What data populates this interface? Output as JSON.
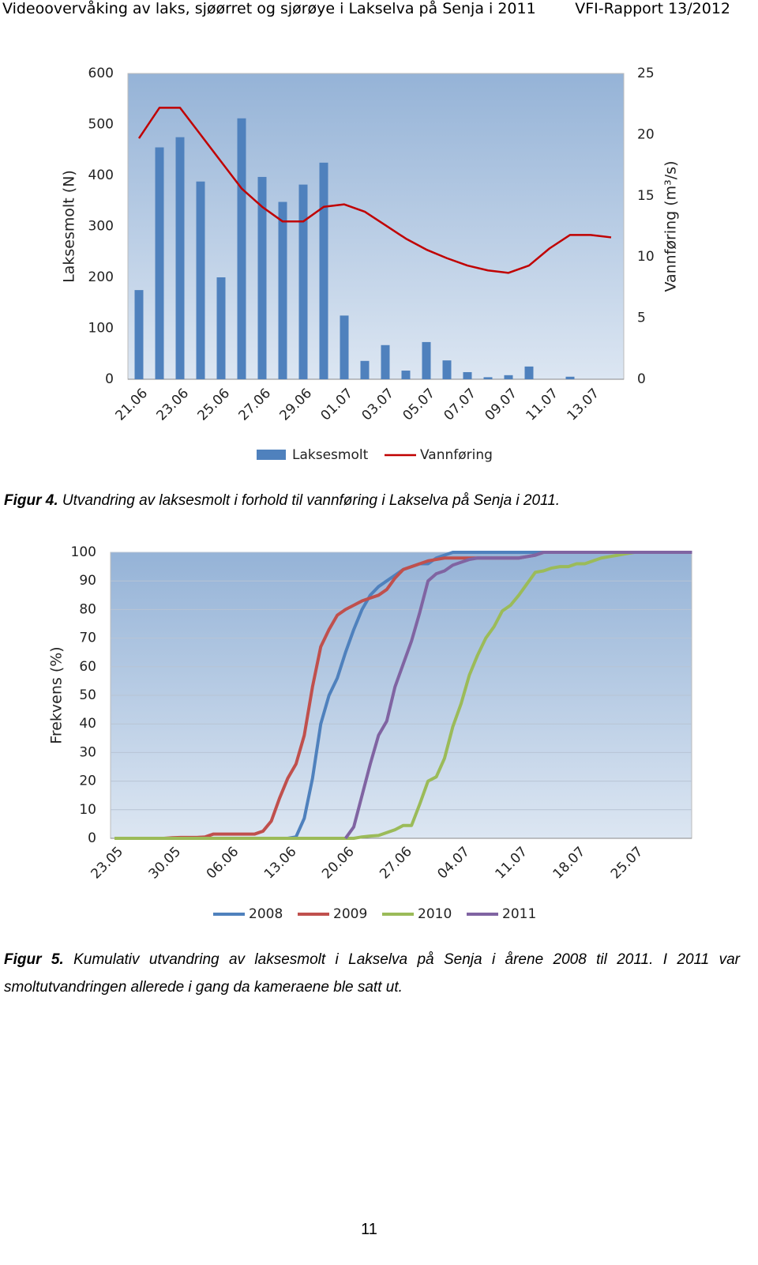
{
  "header": {
    "title": "Videoovervåking av laks, sjøørret og sjørøye i Lakselva på Senja i 2011",
    "report": "VFI-Rapport 13/2012"
  },
  "chart_data": [
    {
      "type": "bar",
      "y_label": "Laksesmolt (N)",
      "y2_label": "Vannføring (m³/s)",
      "categories": [
        "21.06",
        null,
        "23.06",
        null,
        "25.06",
        null,
        "27.06",
        null,
        "29.06",
        null,
        "01.07",
        null,
        "03.07",
        null,
        "05.07",
        null,
        "07.07",
        null,
        "09.07",
        null,
        "11.07",
        null,
        "13.07",
        null
      ],
      "series": [
        {
          "name": "Laksesmolt",
          "type": "bar",
          "color": "#4f81bd",
          "values": [
            175,
            455,
            475,
            388,
            200,
            512,
            397,
            348,
            382,
            425,
            125,
            36,
            67,
            17,
            73,
            37,
            14,
            4,
            8,
            25,
            0,
            5,
            0,
            0
          ]
        },
        {
          "name": "Vannføring",
          "type": "line",
          "axis": "y2",
          "color": "#c00000",
          "values": [
            19.7,
            22.2,
            22.2,
            20.0,
            17.8,
            15.6,
            14.1,
            12.9,
            12.9,
            14.1,
            14.3,
            13.7,
            12.6,
            11.5,
            10.6,
            9.9,
            9.3,
            8.9,
            8.7,
            9.3,
            10.7,
            11.8,
            11.8,
            11.6
          ]
        }
      ],
      "ylim": [
        0,
        600
      ],
      "yticks": [
        0,
        100,
        200,
        300,
        400,
        500,
        600
      ],
      "y2lim": [
        0,
        25
      ],
      "y2ticks": [
        0,
        5,
        10,
        15,
        20,
        25
      ],
      "grid": false,
      "legend": "bottom"
    },
    {
      "type": "line",
      "y_label": "Frekvens (%)",
      "categories": [
        "23.05",
        null,
        null,
        null,
        null,
        null,
        null,
        "30.05",
        null,
        null,
        null,
        null,
        null,
        null,
        "06.06",
        null,
        null,
        null,
        null,
        null,
        null,
        "13.06",
        null,
        null,
        null,
        null,
        null,
        null,
        "20.06",
        null,
        null,
        null,
        null,
        null,
        null,
        "27.06",
        null,
        null,
        null,
        null,
        null,
        null,
        "04.07",
        null,
        null,
        null,
        null,
        null,
        null,
        "11.07",
        null,
        null,
        null,
        null,
        null,
        null,
        "18.07",
        null,
        null,
        null,
        null,
        null,
        null,
        "25.07",
        null,
        null,
        null,
        null,
        null,
        null,
        null
      ],
      "series": [
        {
          "name": "2008",
          "color": "#4f81bd",
          "values": [
            0,
            0,
            0,
            0,
            0,
            0,
            0,
            0,
            0,
            0,
            0,
            0,
            0,
            0,
            0,
            0,
            0,
            0,
            0,
            0,
            0,
            0,
            0.5,
            7,
            21,
            40,
            50,
            56,
            65,
            73,
            80,
            85,
            88,
            90,
            92,
            94,
            95,
            96,
            96,
            98,
            99,
            100,
            100,
            100,
            100,
            100,
            100,
            100,
            100,
            100,
            100,
            100,
            100,
            100,
            100,
            100,
            100,
            100,
            100,
            100,
            100,
            100,
            100,
            100,
            100,
            100,
            100,
            100,
            100,
            100,
            100
          ]
        },
        {
          "name": "2009",
          "color": "#c0504d",
          "values": [
            0,
            0,
            0,
            0,
            0,
            0,
            0,
            0.2,
            0.3,
            0.3,
            0.3,
            0.5,
            1.5,
            1.5,
            1.5,
            1.5,
            1.5,
            1.5,
            2.5,
            6,
            14,
            21,
            26,
            36,
            53,
            67,
            73,
            78,
            80,
            81.5,
            83,
            84,
            85,
            87,
            91,
            94,
            95,
            96,
            97,
            97.5,
            98,
            98,
            98,
            98,
            98,
            98,
            98,
            98,
            98,
            98,
            98.5,
            99,
            100,
            100,
            100,
            100,
            100,
            100,
            100,
            100,
            100,
            100,
            100,
            100,
            100,
            100,
            100,
            100,
            100,
            100,
            100
          ]
        },
        {
          "name": "2010",
          "color": "#9bbb59",
          "values": [
            0,
            0,
            0,
            0,
            0,
            0,
            0,
            0,
            0,
            0,
            0,
            0,
            0,
            0,
            0,
            0,
            0,
            0,
            0,
            0,
            0,
            0,
            0,
            0,
            0,
            0,
            0,
            0,
            0,
            0,
            0.5,
            0.8,
            1,
            2,
            3,
            4.5,
            4.5,
            12,
            20,
            21.5,
            28,
            39,
            47,
            57,
            64,
            70,
            74,
            79.5,
            81.5,
            85,
            89,
            93,
            93.5,
            94.5,
            95,
            95,
            96,
            96,
            97,
            98,
            98.5,
            99,
            99.5,
            100,
            100,
            100,
            100,
            100,
            100,
            100,
            100
          ]
        },
        {
          "name": "2011",
          "color": "#8064a2",
          "values": [
            null,
            null,
            null,
            null,
            null,
            null,
            null,
            null,
            null,
            null,
            null,
            null,
            null,
            null,
            null,
            null,
            null,
            null,
            null,
            null,
            null,
            null,
            null,
            null,
            null,
            null,
            null,
            null,
            0,
            4,
            15,
            26,
            36,
            41,
            53,
            61,
            69,
            79,
            90,
            92.5,
            93.5,
            95.5,
            96.5,
            97.5,
            98,
            98,
            98,
            98,
            98,
            98,
            98.5,
            99,
            100,
            100,
            100,
            100,
            100,
            100,
            100,
            100,
            100,
            100,
            100,
            100,
            100,
            100,
            100,
            100,
            100,
            100,
            100
          ]
        }
      ],
      "ylim": [
        0,
        100
      ],
      "yticks": [
        0,
        10,
        20,
        30,
        40,
        50,
        60,
        70,
        80,
        90,
        100
      ],
      "grid": true,
      "legend": "bottom"
    }
  ],
  "captions": [
    {
      "label": "Figur 4.",
      "text": "Utvandring av laksesmolt i forhold til vannføring i Lakselva på Senja i 2011."
    },
    {
      "label": "Figur 5.",
      "text": "Kumulativ utvandring av laksesmolt i Lakselva på Senja i årene 2008 til 2011. I 2011 var smoltutvandringen allerede i gang da kameraene ble satt ut."
    }
  ],
  "page_number": "11"
}
